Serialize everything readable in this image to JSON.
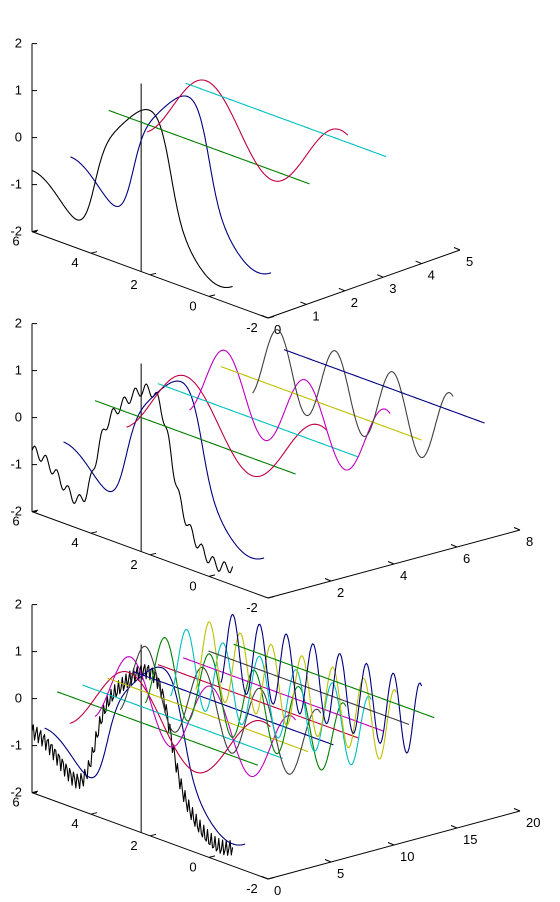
{
  "chart_data": [
    {
      "type": "line",
      "projection": "3d",
      "title": "",
      "xlabel": "",
      "ylabel": "",
      "zlabel": "",
      "xlim": [
        0,
        5
      ],
      "ylim": [
        -2,
        6
      ],
      "zlim": [
        -2,
        2
      ],
      "xticks": [
        "0",
        "1",
        "2",
        "3",
        "4",
        "5"
      ],
      "yticks": [
        "-2",
        "0",
        "2",
        "4",
        "6"
      ],
      "zticks": [
        "-2",
        "-1",
        "0",
        "1",
        "2"
      ],
      "grid": false,
      "series": [
        {
          "x": 0,
          "color": "#000000",
          "curve": "envelope",
          "waves": 1,
          "noise": 0
        },
        {
          "x": 1,
          "color": "#00007f",
          "curve": "envelope",
          "waves": 1,
          "noise": 0
        },
        {
          "x": 2,
          "color": "#007f00",
          "curve": "zero"
        },
        {
          "x": 3,
          "color": "#bf0040",
          "curve": "sine",
          "waves": 3
        },
        {
          "x": 4,
          "color": "#00bfbf",
          "curve": "zero"
        }
      ]
    },
    {
      "type": "line",
      "projection": "3d",
      "title": "",
      "xlabel": "",
      "ylabel": "",
      "zlabel": "",
      "xlim": [
        0,
        8
      ],
      "ylim": [
        -2,
        6
      ],
      "zlim": [
        -2,
        2
      ],
      "xticks": [
        "2",
        "4",
        "6",
        "8"
      ],
      "yticks": [
        "-2",
        "0",
        "2",
        "4",
        "6"
      ],
      "zticks": [
        "-2",
        "-1",
        "0",
        "1",
        "2"
      ],
      "grid": false,
      "series": [
        {
          "x": 0,
          "color": "#000000",
          "curve": "envelope",
          "waves": 3,
          "noise": 0.12
        },
        {
          "x": 1,
          "color": "#00007f",
          "curve": "envelope",
          "waves": 1,
          "noise": 0
        },
        {
          "x": 2,
          "color": "#007f00",
          "curve": "zero"
        },
        {
          "x": 3,
          "color": "#bf0040",
          "curve": "sine",
          "waves": 3
        },
        {
          "x": 4,
          "color": "#00bfbf",
          "curve": "zero"
        },
        {
          "x": 5,
          "color": "#bf00bf",
          "curve": "sine",
          "waves": 5
        },
        {
          "x": 6,
          "color": "#bfbf00",
          "curve": "zero"
        },
        {
          "x": 7,
          "color": "#404040",
          "curve": "sine",
          "waves": 7
        },
        {
          "x": 8,
          "color": "#00007f",
          "curve": "zero"
        }
      ]
    },
    {
      "type": "line",
      "projection": "3d",
      "title": "",
      "xlabel": "",
      "ylabel": "",
      "zlabel": "",
      "xlim": [
        0,
        20
      ],
      "ylim": [
        -2,
        6
      ],
      "zlim": [
        -2,
        2
      ],
      "xticks": [
        "0",
        "5",
        "10",
        "15",
        "20"
      ],
      "yticks": [
        "-2",
        "0",
        "2",
        "4",
        "6"
      ],
      "zticks": [
        "-2",
        "-1",
        "0",
        "1",
        "2"
      ],
      "grid": false,
      "series": [
        {
          "x": 0,
          "color": "#000000",
          "curve": "envelope",
          "waves": 9,
          "noise": 0.18
        },
        {
          "x": 1,
          "color": "#00007f",
          "curve": "envelope",
          "waves": 1,
          "noise": 0
        },
        {
          "x": 2,
          "color": "#007f00",
          "curve": "zero"
        },
        {
          "x": 3,
          "color": "#bf0040",
          "curve": "sine",
          "waves": 3
        },
        {
          "x": 4,
          "color": "#00bfbf",
          "curve": "zero"
        },
        {
          "x": 5,
          "color": "#bf00bf",
          "curve": "sine",
          "waves": 5
        },
        {
          "x": 6,
          "color": "#bfbf00",
          "curve": "zero"
        },
        {
          "x": 7,
          "color": "#404040",
          "curve": "sine",
          "waves": 7
        },
        {
          "x": 8,
          "color": "#00007f",
          "curve": "zero"
        },
        {
          "x": 9,
          "color": "#007f00",
          "curve": "sine",
          "waves": 9
        },
        {
          "x": 10,
          "color": "#bf0040",
          "curve": "zero"
        },
        {
          "x": 11,
          "color": "#00bfbf",
          "curve": "sine",
          "waves": 11
        },
        {
          "x": 12,
          "color": "#bf00bf",
          "curve": "zero"
        },
        {
          "x": 13,
          "color": "#bfbf00",
          "curve": "sine",
          "waves": 13
        },
        {
          "x": 14,
          "color": "#404040",
          "curve": "zero"
        },
        {
          "x": 15,
          "color": "#00007f",
          "curve": "sine",
          "waves": 15
        },
        {
          "x": 16,
          "color": "#007f00",
          "curve": "zero"
        }
      ]
    }
  ]
}
